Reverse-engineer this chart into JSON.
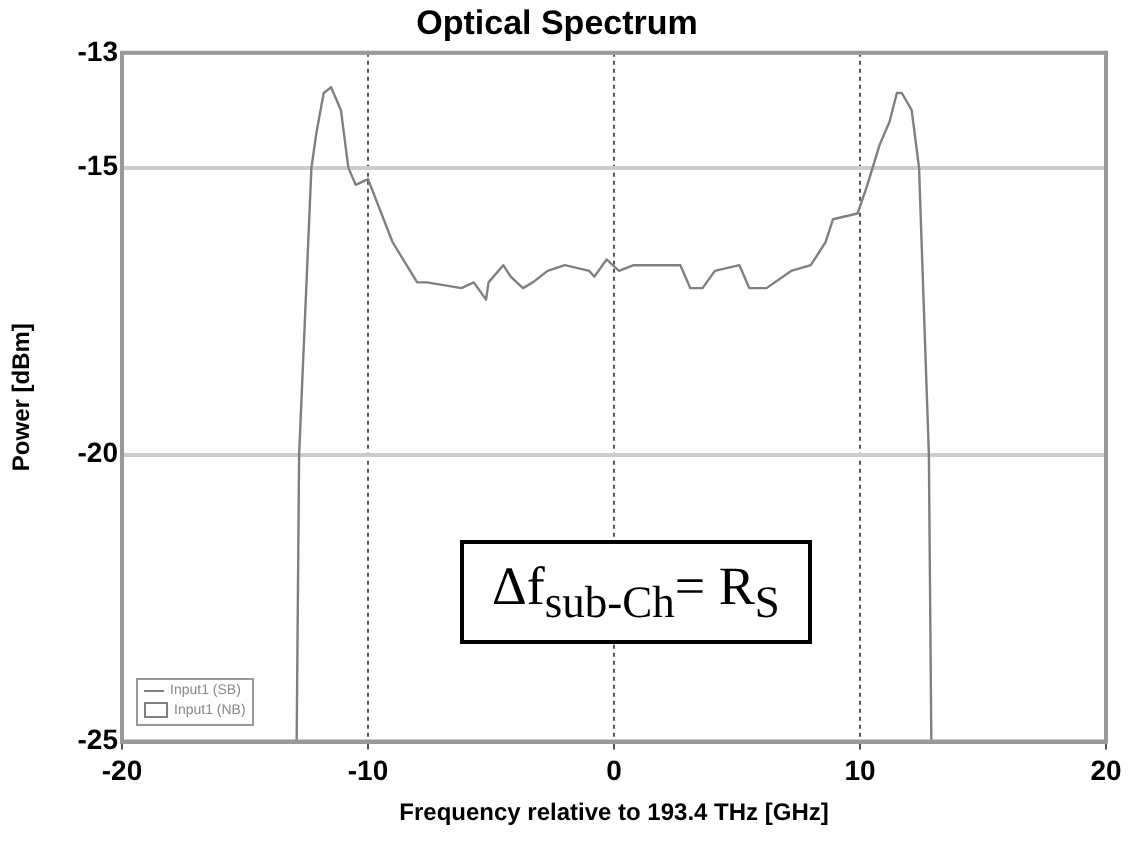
{
  "chart_data": {
    "type": "line",
    "title": "Optical Spectrum",
    "xlabel": "Frequency relative to 193.4 THz [GHz]",
    "ylabel": "Power [dBm]",
    "xlim": [
      -20,
      20
    ],
    "xticks": [
      -20,
      -10,
      0,
      10,
      20
    ],
    "ylim": [
      -25,
      -13
    ],
    "yticks": [
      -25,
      -20,
      -15,
      -13
    ],
    "grid": true,
    "legend": "bottom left",
    "marker": "none",
    "line_style": "solid",
    "annotations": [
      "Δf$_{sub-Ch}$= R$_{S}$"
    ],
    "series": [
      {
        "name": "Input1 (SB)",
        "color": "#808080",
        "x": [
          -12.9,
          -12.8,
          -12.3,
          -12.1,
          -11.8,
          -11.5,
          -11.1,
          -10.8,
          -10.5,
          -10.0,
          -9.0,
          -8.0,
          -7.6,
          -6.2,
          -5.7,
          -5.2,
          -5.1,
          -4.5,
          -4.2,
          -3.7,
          -3.3,
          -2.7,
          -2.0,
          -1.0,
          -0.8,
          -0.3,
          0.2,
          0.8,
          2.7,
          3.1,
          3.6,
          4.1,
          5.1,
          5.5,
          6.2,
          7.2,
          8.0,
          8.6,
          8.9,
          9.9,
          10.3,
          10.8,
          11.2,
          11.5,
          11.7,
          12.1,
          12.4,
          12.8,
          12.9
        ],
        "values": [
          -25,
          -20,
          -15,
          -14.4,
          -13.7,
          -13.6,
          -14,
          -15,
          -15.3,
          -15.2,
          -16.3,
          -17,
          -17.0,
          -17.1,
          -17.0,
          -17.3,
          -17.0,
          -16.7,
          -16.9,
          -17.1,
          -17.0,
          -16.8,
          -16.7,
          -16.8,
          -16.9,
          -16.6,
          -16.8,
          -16.7,
          -16.7,
          -17.1,
          -17.1,
          -16.8,
          -16.7,
          -17.1,
          -17.1,
          -16.8,
          -16.7,
          -16.3,
          -15.9,
          -15.8,
          -15.3,
          -14.6,
          -14.2,
          -13.7,
          -13.7,
          -14,
          -15,
          -20,
          -25
        ]
      },
      {
        "name": "Input1 (NB)",
        "color": "#808080",
        "type": "area"
      }
    ]
  }
}
